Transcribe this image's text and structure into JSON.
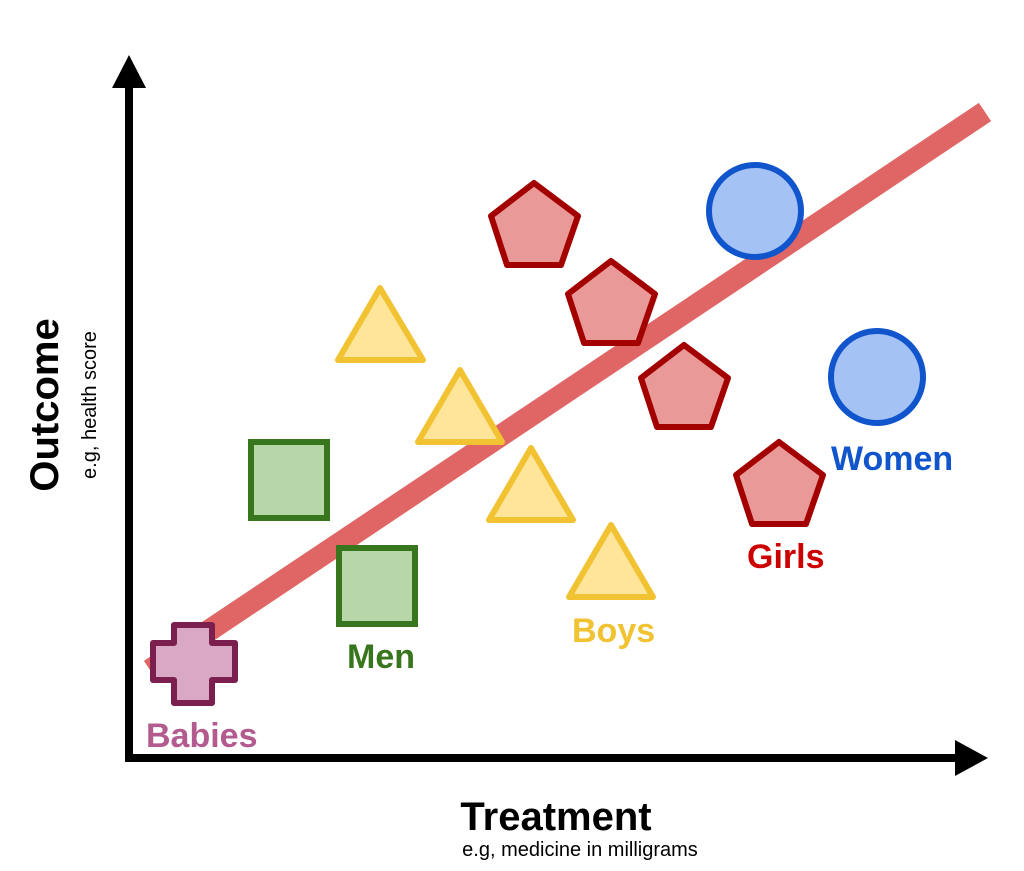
{
  "diagram": {
    "x_axis": {
      "label": "Treatment",
      "sublabel": "e.g, medicine in milligrams"
    },
    "y_axis": {
      "label": "Outcome",
      "sublabel": "e.g, health score"
    },
    "groups": [
      {
        "name": "Babies",
        "shape": "cross",
        "fill": "#d8a8c4",
        "stroke": "#7b1f4e",
        "label_color": "#b35b8f"
      },
      {
        "name": "Men",
        "shape": "square",
        "fill": "#b7d7a8",
        "stroke": "#38761d",
        "label_color": "#38761d"
      },
      {
        "name": "Boys",
        "shape": "triangle",
        "fill": "#ffe599",
        "stroke": "#f1c232",
        "label_color": "#f1c232"
      },
      {
        "name": "Girls",
        "shape": "pentagon",
        "fill": "#ea9999",
        "stroke": "#a30000",
        "label_color": "#cc0000"
      },
      {
        "name": "Women",
        "shape": "circle",
        "fill": "#a4c2f4",
        "stroke": "#1155cc",
        "label_color": "#1155cc"
      }
    ],
    "trend_line_color": "#e06666",
    "axis_color": "#000000"
  }
}
